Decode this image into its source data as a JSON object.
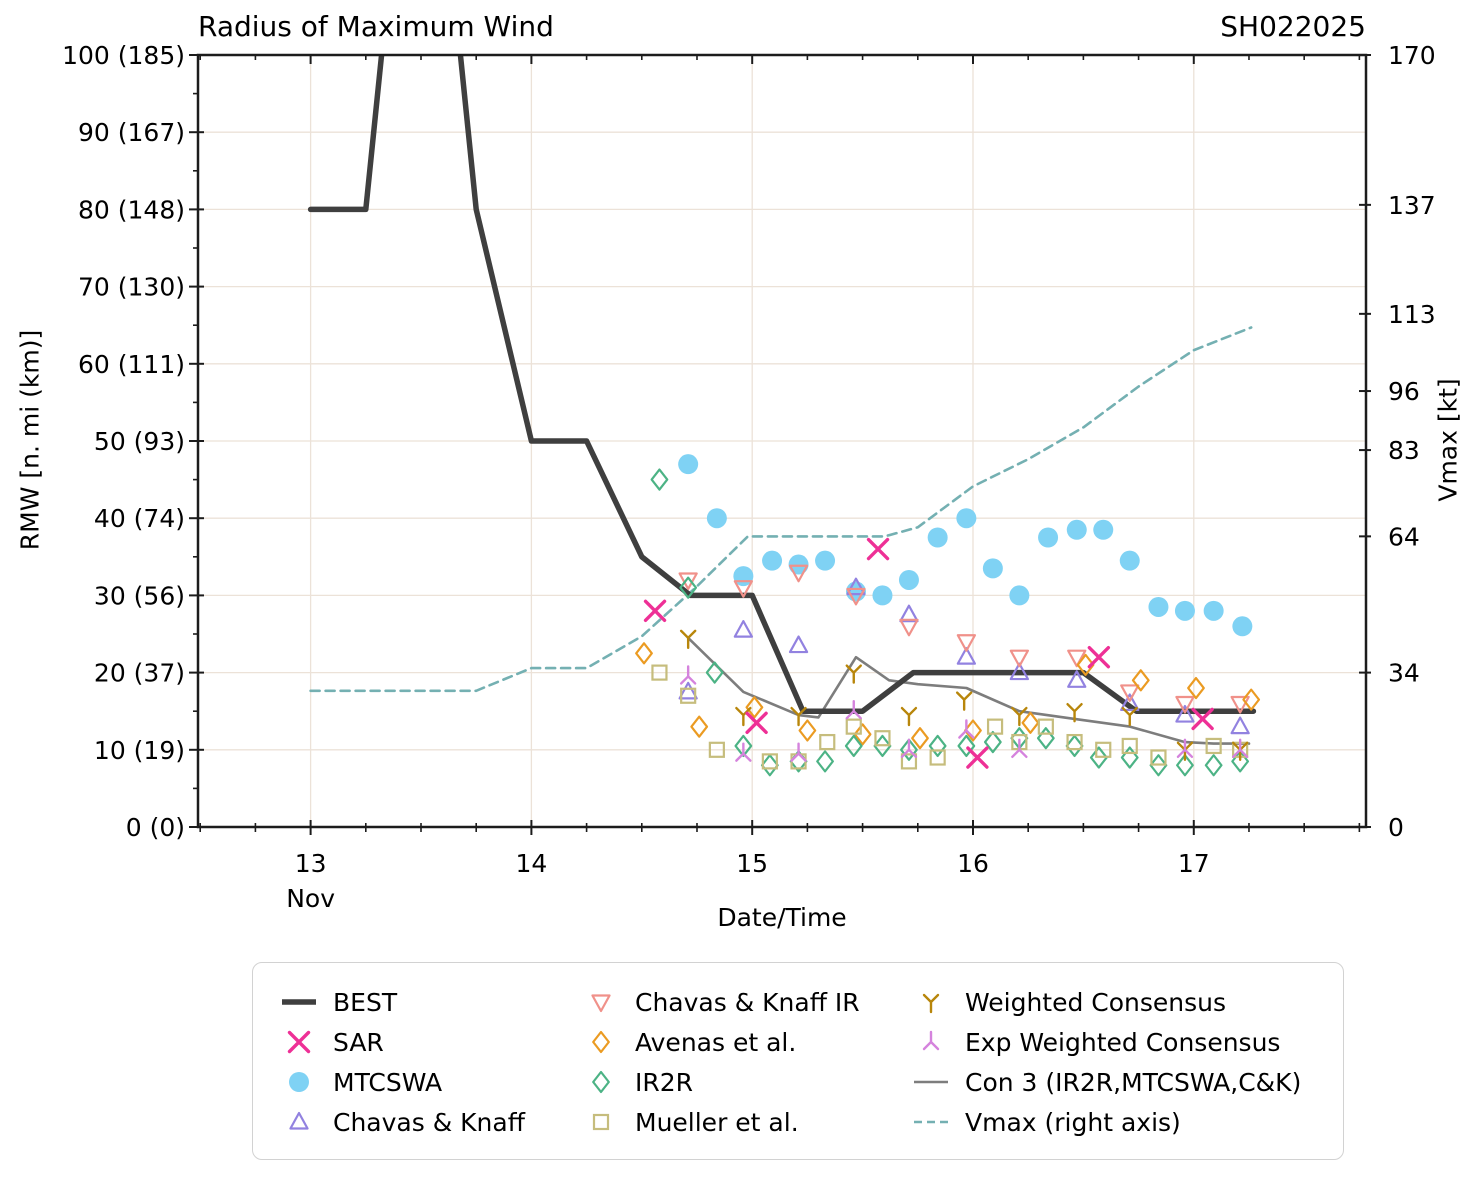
{
  "header": {
    "title": "Radius of Maximum Wind",
    "storm_id": "SH022025"
  },
  "axes": {
    "x": {
      "label": "Date/Time",
      "month_label": "Nov",
      "range": [
        12.49,
        17.78
      ],
      "tick_values": [
        13,
        14,
        15,
        16,
        17
      ],
      "tick_labels": [
        "13",
        "14",
        "15",
        "16",
        "17"
      ],
      "minor_step": 0.25
    },
    "y_left": {
      "label": "RMW [n. mi (km)]",
      "max": 100,
      "tick_values": [
        0,
        10,
        20,
        30,
        40,
        50,
        60,
        70,
        80,
        90,
        100
      ],
      "tick_labels": [
        "0 (0)",
        "10 (19)",
        "20 (37)",
        "30 (56)",
        "40 (74)",
        "50 (93)",
        "60 (111)",
        "70 (130)",
        "80 (148)",
        "90 (167)",
        "100 (185)"
      ],
      "minor_step": 5
    },
    "y_right": {
      "label": "Vmax [kt]",
      "max": 170,
      "tick_values": [
        0,
        34,
        64,
        83,
        96,
        113,
        137,
        170
      ],
      "tick_labels": [
        "0",
        "34",
        "64",
        "83",
        "96",
        "113",
        "137",
        "170"
      ]
    },
    "grid_color": "#ece2d8",
    "spine_color": "#1c1c1c"
  },
  "chart_data": {
    "type": "line",
    "xlabel": "Date/Time",
    "ylabel": "RMW [n. mi (km)]",
    "ylabel_right": "Vmax [kt]",
    "xlim": [
      12.49,
      17.78
    ],
    "ylim": [
      0,
      100
    ],
    "ylim_right": [
      0,
      170
    ],
    "grid": true,
    "legend_position": "bottom",
    "series": [
      {
        "id": "vmax",
        "name": "Vmax (right axis)",
        "type": "line",
        "axis": "right",
        "color": "#74b0b2",
        "width": 2.6,
        "dash": "9 6",
        "points": [
          [
            13.0,
            30
          ],
          [
            13.75,
            30
          ],
          [
            14.0,
            35
          ],
          [
            14.25,
            35
          ],
          [
            14.5,
            42
          ],
          [
            14.75,
            53
          ],
          [
            14.98,
            64
          ],
          [
            15.6,
            64
          ],
          [
            15.75,
            66
          ],
          [
            16.0,
            75
          ],
          [
            16.25,
            81
          ],
          [
            16.5,
            88
          ],
          [
            16.75,
            97
          ],
          [
            17.0,
            105
          ],
          [
            17.26,
            110
          ]
        ]
      },
      {
        "id": "con3",
        "name": "Con 3 (IR2R,MTCSWA,C&K)",
        "type": "line",
        "axis": "left",
        "color": "#7d7d7d",
        "width": 2.6,
        "dash": "",
        "points": [
          [
            14.71,
            24.5
          ],
          [
            14.96,
            17.5
          ],
          [
            15.21,
            14.5
          ],
          [
            15.3,
            14.2
          ],
          [
            15.47,
            22
          ],
          [
            15.62,
            19
          ],
          [
            15.75,
            18.5
          ],
          [
            15.97,
            18
          ],
          [
            16.21,
            15
          ],
          [
            16.46,
            14
          ],
          [
            16.71,
            13
          ],
          [
            16.96,
            11
          ],
          [
            17.09,
            10.8
          ],
          [
            17.25,
            10.8
          ]
        ]
      },
      {
        "id": "best",
        "name": "BEST",
        "type": "line",
        "axis": "left",
        "color": "#3f3f3f",
        "width": 5.5,
        "dash": "",
        "points": [
          [
            13.0,
            80
          ],
          [
            13.25,
            80
          ],
          [
            13.5,
            150
          ],
          [
            13.75,
            80
          ],
          [
            14.0,
            50
          ],
          [
            14.25,
            50
          ],
          [
            14.5,
            35
          ],
          [
            14.72,
            30
          ],
          [
            15.0,
            30
          ],
          [
            15.23,
            15
          ],
          [
            15.5,
            15
          ],
          [
            15.73,
            20
          ],
          [
            16.5,
            20
          ],
          [
            16.74,
            15
          ],
          [
            17.27,
            15
          ]
        ]
      },
      {
        "id": "mtcswa",
        "name": "MTCSWA",
        "type": "scatter",
        "axis": "left",
        "color": "#7fd2f4",
        "marker": "circle",
        "points": [
          [
            14.71,
            47
          ],
          [
            14.84,
            40
          ],
          [
            14.96,
            32.5
          ],
          [
            15.09,
            34.5
          ],
          [
            15.21,
            34
          ],
          [
            15.33,
            34.5
          ],
          [
            15.47,
            30.5
          ],
          [
            15.59,
            30
          ],
          [
            15.71,
            32
          ],
          [
            15.84,
            37.5
          ],
          [
            15.97,
            40
          ],
          [
            16.09,
            33.5
          ],
          [
            16.21,
            30
          ],
          [
            16.34,
            37.5
          ],
          [
            16.47,
            38.5
          ],
          [
            16.59,
            38.5
          ],
          [
            16.71,
            34.5
          ],
          [
            16.84,
            28.5
          ],
          [
            16.96,
            28
          ],
          [
            17.09,
            28
          ],
          [
            17.22,
            26
          ]
        ]
      },
      {
        "id": "chavas-knaff",
        "name": "Chavas & Knaff",
        "type": "scatter",
        "axis": "left",
        "color": "#9282e0",
        "marker": "triangle-up",
        "points": [
          [
            14.71,
            17.5
          ],
          [
            14.96,
            25.5
          ],
          [
            15.21,
            23.5
          ],
          [
            15.47,
            31
          ],
          [
            15.71,
            27.5
          ],
          [
            15.97,
            22
          ],
          [
            16.21,
            20
          ],
          [
            16.47,
            19
          ],
          [
            16.71,
            16
          ],
          [
            16.96,
            14.5
          ],
          [
            17.21,
            13
          ]
        ]
      },
      {
        "id": "chavas-knaff-ir",
        "name": "Chavas & Knaff IR",
        "type": "scatter",
        "axis": "left",
        "color": "#f0918a",
        "marker": "triangle-down",
        "points": [
          [
            14.71,
            32
          ],
          [
            14.96,
            31
          ],
          [
            15.21,
            33
          ],
          [
            15.47,
            30
          ],
          [
            15.71,
            26
          ],
          [
            15.97,
            24
          ],
          [
            16.21,
            22
          ],
          [
            16.47,
            22
          ],
          [
            16.71,
            17.5
          ],
          [
            16.96,
            16
          ],
          [
            17.21,
            16
          ]
        ]
      },
      {
        "id": "avenas",
        "name": "Avenas et al.",
        "type": "scatter",
        "axis": "left",
        "color": "#eb9b22",
        "marker": "diamond",
        "points": [
          [
            14.51,
            22.5
          ],
          [
            14.76,
            13
          ],
          [
            15.01,
            15.5
          ],
          [
            15.25,
            12.5
          ],
          [
            15.5,
            12
          ],
          [
            15.76,
            11.5
          ],
          [
            16.0,
            12.5
          ],
          [
            16.26,
            13.5
          ],
          [
            16.51,
            21
          ],
          [
            16.76,
            19
          ],
          [
            17.01,
            18
          ],
          [
            17.26,
            16.5
          ]
        ]
      },
      {
        "id": "ir2r",
        "name": "IR2R",
        "type": "scatter",
        "axis": "left",
        "color": "#4cb385",
        "marker": "diamond",
        "points": [
          [
            14.58,
            45
          ],
          [
            14.71,
            31
          ],
          [
            14.83,
            20
          ],
          [
            14.96,
            10.5
          ],
          [
            15.08,
            8
          ],
          [
            15.21,
            8.5
          ],
          [
            15.33,
            8.5
          ],
          [
            15.46,
            10.5
          ],
          [
            15.59,
            10.5
          ],
          [
            15.71,
            10
          ],
          [
            15.84,
            10.5
          ],
          [
            15.97,
            10.5
          ],
          [
            16.09,
            11
          ],
          [
            16.21,
            11.5
          ],
          [
            16.33,
            11.5
          ],
          [
            16.46,
            10.5
          ],
          [
            16.57,
            9
          ],
          [
            16.71,
            9
          ],
          [
            16.84,
            8
          ],
          [
            16.96,
            8
          ],
          [
            17.09,
            8
          ],
          [
            17.21,
            8.5
          ]
        ]
      },
      {
        "id": "mueller",
        "name": "Mueller et al.",
        "type": "scatter",
        "axis": "left",
        "color": "#c6bd7d",
        "marker": "square",
        "points": [
          [
            14.58,
            20
          ],
          [
            14.71,
            17
          ],
          [
            14.84,
            10
          ],
          [
            15.08,
            8.5
          ],
          [
            15.21,
            8.5
          ],
          [
            15.34,
            11
          ],
          [
            15.46,
            13
          ],
          [
            15.59,
            11.5
          ],
          [
            15.71,
            8.5
          ],
          [
            15.84,
            9
          ],
          [
            16.1,
            13
          ],
          [
            16.21,
            11
          ],
          [
            16.33,
            13
          ],
          [
            16.46,
            11
          ],
          [
            16.59,
            10
          ],
          [
            16.71,
            10.5
          ],
          [
            16.84,
            9
          ],
          [
            17.09,
            10.5
          ],
          [
            17.21,
            10
          ]
        ]
      },
      {
        "id": "weighted-consensus",
        "name": "Weighted Consensus",
        "type": "scatter",
        "axis": "left",
        "color": "#b8860b",
        "marker": "tri-y",
        "points": [
          [
            14.71,
            24.5
          ],
          [
            14.96,
            14.5
          ],
          [
            15.21,
            14.5
          ],
          [
            15.46,
            20
          ],
          [
            15.71,
            14.5
          ],
          [
            15.96,
            16.5
          ],
          [
            16.21,
            14.5
          ],
          [
            16.46,
            15
          ],
          [
            16.71,
            14.5
          ],
          [
            16.96,
            10
          ],
          [
            17.21,
            10
          ]
        ]
      },
      {
        "id": "exp-weighted-consensus",
        "name": "Exp Weighted Consensus",
        "type": "scatter",
        "axis": "left",
        "color": "#d583dd",
        "marker": "tri-y-inverted",
        "points": [
          [
            14.71,
            19.5
          ],
          [
            14.96,
            9.5
          ],
          [
            15.21,
            9.5
          ],
          [
            15.46,
            15
          ],
          [
            15.71,
            10
          ],
          [
            15.97,
            12.5
          ],
          [
            16.21,
            10
          ],
          [
            16.96,
            10
          ],
          [
            17.21,
            10
          ]
        ]
      },
      {
        "id": "sar",
        "name": "SAR",
        "type": "scatter",
        "axis": "left",
        "color": "#ee3096",
        "marker": "x",
        "points": [
          [
            14.56,
            28
          ],
          [
            15.02,
            13.5
          ],
          [
            15.57,
            36
          ],
          [
            16.02,
            9
          ],
          [
            16.57,
            22
          ],
          [
            17.04,
            14
          ]
        ]
      }
    ]
  },
  "legend": {
    "entries": [
      {
        "series_id": "best",
        "label": "BEST"
      },
      {
        "series_id": "sar",
        "label": "SAR"
      },
      {
        "series_id": "mtcswa",
        "label": "MTCSWA"
      },
      {
        "series_id": "chavas-knaff",
        "label": "Chavas & Knaff"
      },
      {
        "series_id": "chavas-knaff-ir",
        "label": "Chavas & Knaff IR"
      },
      {
        "series_id": "avenas",
        "label": "Avenas et al."
      },
      {
        "series_id": "ir2r",
        "label": "IR2R"
      },
      {
        "series_id": "mueller",
        "label": "Mueller et al."
      },
      {
        "series_id": "weighted-consensus",
        "label": "Weighted Consensus"
      },
      {
        "series_id": "exp-weighted-consensus",
        "label": "Exp Weighted Consensus"
      },
      {
        "series_id": "con3",
        "label": "Con 3 (IR2R,MTCSWA,C&K)"
      },
      {
        "series_id": "vmax",
        "label": "Vmax (right axis)"
      }
    ]
  }
}
